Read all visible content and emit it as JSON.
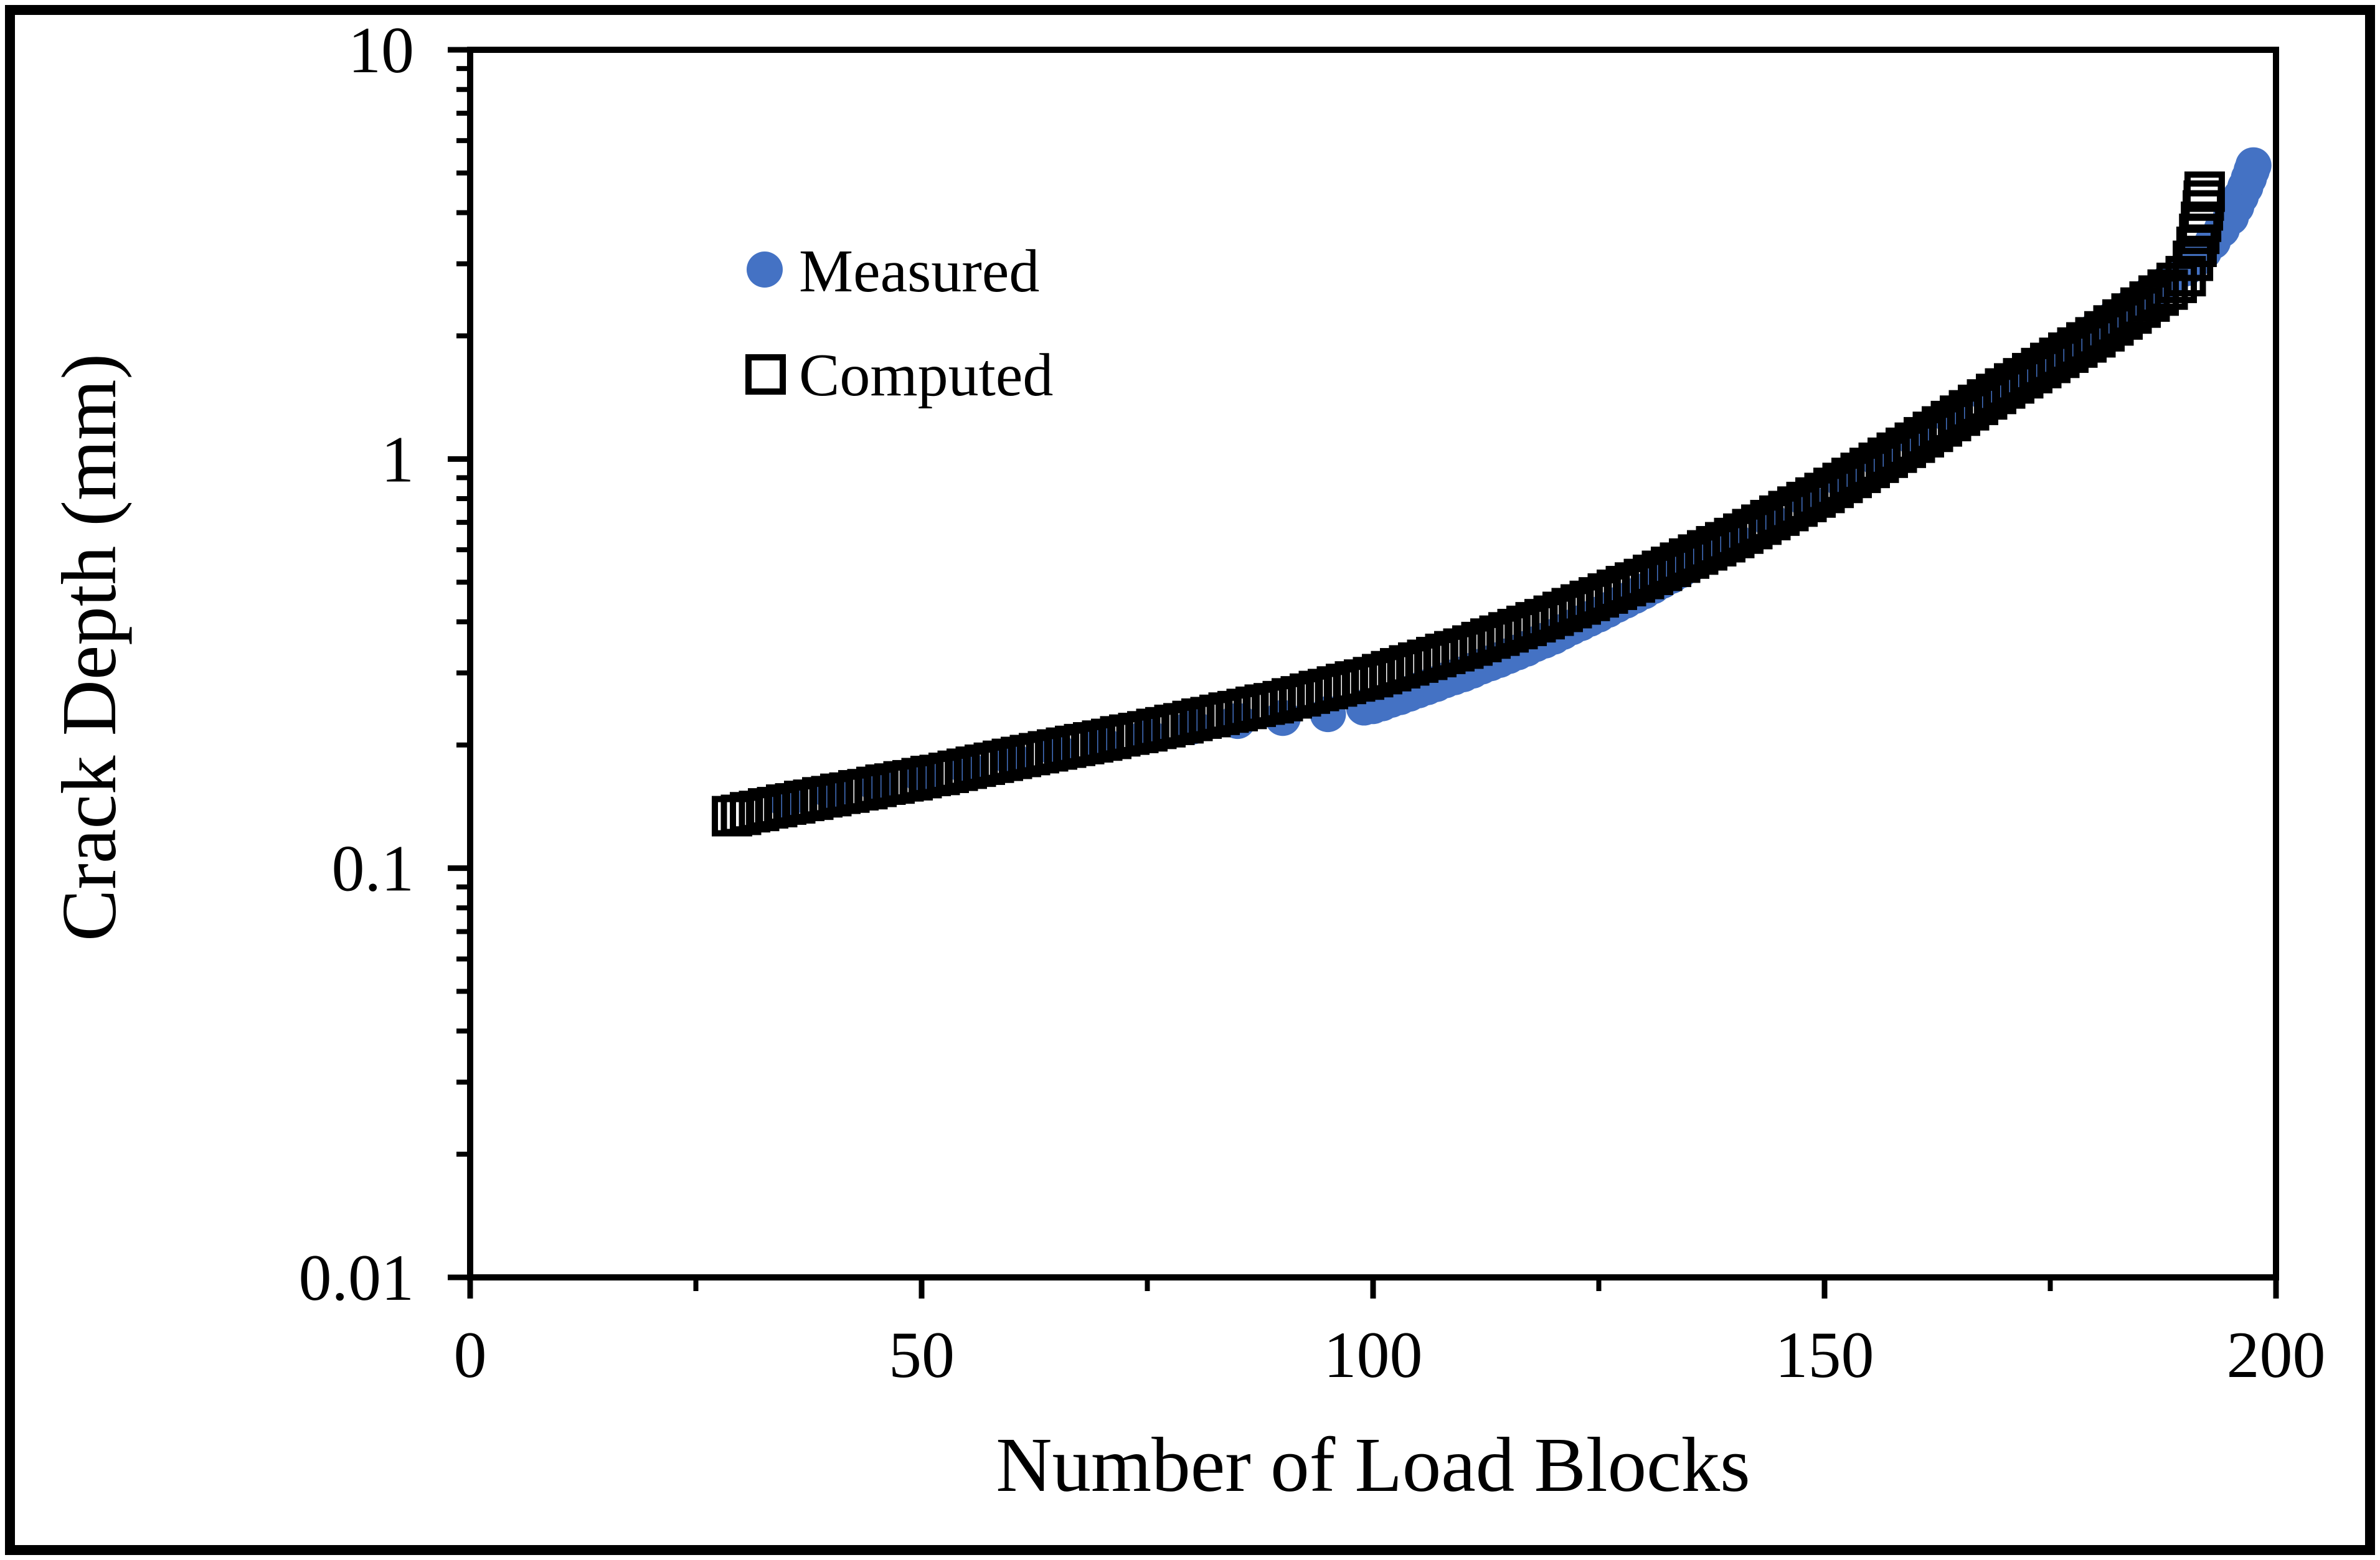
{
  "colors": {
    "measured_blue": "#4472C4",
    "computed_black": "#000000",
    "background": "#FFFFFF",
    "axis": "#000000"
  },
  "chart_data": {
    "type": "scatter",
    "title": "",
    "xlabel": "Number of Load Blocks",
    "ylabel": "Crack Depth (mm)",
    "grid": "off",
    "legend_position": "inside-top-left",
    "x_axis": {
      "scale": "linear",
      "min": 0,
      "max": 200,
      "major_ticks": [
        0,
        50,
        100,
        150,
        200
      ],
      "major_tick_labels": [
        "0",
        "50",
        "100",
        "150",
        "200"
      ],
      "minor_ticks": [
        25,
        75,
        125,
        175
      ]
    },
    "y_axis": {
      "scale": "log",
      "min": 0.01,
      "max": 10,
      "major_ticks": [
        {
          "value": 10,
          "label": "10"
        },
        {
          "value": 1,
          "label": "1"
        },
        {
          "value": 0.1,
          "label": "0.1"
        },
        {
          "value": 0.01,
          "label": "0.01"
        }
      ],
      "minor_mantissas": [
        2,
        3,
        4,
        5,
        6,
        7,
        8,
        9
      ]
    },
    "legend": [
      {
        "label": "Measured",
        "marker": "filled-circle",
        "color": "#4472C4"
      },
      {
        "label": "Computed",
        "marker": "open-square",
        "color": "#000000"
      }
    ],
    "series": [
      {
        "name": "Measured",
        "marker": "circle",
        "color": "#4472C4",
        "points": [
          [
            35,
            0.146
          ],
          [
            40,
            0.153
          ],
          [
            45,
            0.16
          ],
          [
            50,
            0.168
          ],
          [
            55,
            0.176
          ],
          [
            60,
            0.185
          ],
          [
            65,
            0.194
          ],
          [
            70,
            0.202
          ],
          [
            75,
            0.211
          ],
          [
            80,
            0.222
          ],
          [
            85,
            0.229
          ],
          [
            90,
            0.233
          ],
          [
            95,
            0.238
          ],
          [
            99,
            0.247
          ],
          [
            100,
            0.249
          ],
          [
            101,
            0.253
          ],
          [
            102,
            0.258
          ],
          [
            103,
            0.262
          ],
          [
            104,
            0.267
          ],
          [
            105,
            0.272
          ],
          [
            106,
            0.277
          ],
          [
            107,
            0.282
          ],
          [
            108,
            0.288
          ],
          [
            109,
            0.293
          ],
          [
            110,
            0.298
          ],
          [
            111,
            0.304
          ],
          [
            112,
            0.311
          ],
          [
            113,
            0.317
          ],
          [
            114,
            0.323
          ],
          [
            115,
            0.33
          ],
          [
            116,
            0.337
          ],
          [
            117,
            0.344
          ],
          [
            118,
            0.353
          ],
          [
            119,
            0.36
          ],
          [
            120,
            0.368
          ],
          [
            121,
            0.378
          ],
          [
            122,
            0.388
          ],
          [
            123,
            0.397
          ],
          [
            124,
            0.407
          ],
          [
            125,
            0.417
          ],
          [
            126,
            0.428
          ],
          [
            127,
            0.44
          ],
          [
            128,
            0.451
          ],
          [
            129,
            0.463
          ],
          [
            130,
            0.475
          ],
          [
            131,
            0.489
          ],
          [
            132,
            0.504
          ],
          [
            133,
            0.518
          ],
          [
            134,
            0.534
          ],
          [
            135,
            0.55
          ],
          [
            136,
            0.566
          ],
          [
            137,
            0.583
          ],
          [
            140,
            0.635
          ],
          [
            144,
            0.709
          ],
          [
            148,
            0.793
          ],
          [
            152,
            0.885
          ],
          [
            156,
            0.995
          ],
          [
            160,
            1.118
          ],
          [
            164,
            1.269
          ],
          [
            168,
            1.437
          ],
          [
            171,
            1.579
          ],
          [
            174,
            1.728
          ],
          [
            177,
            1.888
          ],
          [
            180,
            2.062
          ],
          [
            182,
            2.205
          ],
          [
            184,
            2.358
          ],
          [
            186,
            2.522
          ],
          [
            188,
            2.698
          ],
          [
            190,
            2.924
          ],
          [
            191,
            3.06
          ],
          [
            192,
            3.21
          ],
          [
            193,
            3.4
          ],
          [
            194,
            3.64
          ],
          [
            195,
            3.9
          ],
          [
            195.6,
            4.14
          ],
          [
            196.1,
            4.38
          ],
          [
            196.6,
            4.62
          ],
          [
            197,
            4.86
          ],
          [
            197.3,
            5.07
          ],
          [
            197.5,
            5.22
          ]
        ]
      },
      {
        "name": "Computed",
        "marker": "square",
        "color": "#000000",
        "x_start": 29,
        "x_step": 1,
        "y_values": [
          0.134,
          0.135,
          0.137,
          0.138,
          0.14,
          0.141,
          0.143,
          0.144,
          0.146,
          0.147,
          0.149,
          0.15,
          0.152,
          0.153,
          0.155,
          0.156,
          0.158,
          0.16,
          0.161,
          0.163,
          0.164,
          0.166,
          0.168,
          0.169,
          0.171,
          0.173,
          0.175,
          0.177,
          0.179,
          0.181,
          0.183,
          0.185,
          0.187,
          0.189,
          0.191,
          0.193,
          0.195,
          0.197,
          0.199,
          0.201,
          0.203,
          0.205,
          0.207,
          0.21,
          0.212,
          0.214,
          0.216,
          0.219,
          0.221,
          0.224,
          0.226,
          0.229,
          0.232,
          0.234,
          0.237,
          0.24,
          0.242,
          0.245,
          0.248,
          0.251,
          0.253,
          0.256,
          0.26,
          0.263,
          0.267,
          0.271,
          0.274,
          0.278,
          0.282,
          0.286,
          0.289,
          0.293,
          0.298,
          0.303,
          0.308,
          0.313,
          0.318,
          0.323,
          0.328,
          0.334,
          0.339,
          0.344,
          0.35,
          0.357,
          0.364,
          0.37,
          0.377,
          0.384,
          0.391,
          0.399,
          0.406,
          0.414,
          0.423,
          0.432,
          0.441,
          0.45,
          0.459,
          0.469,
          0.479,
          0.489,
          0.499,
          0.509,
          0.521,
          0.533,
          0.545,
          0.558,
          0.571,
          0.584,
          0.598,
          0.612,
          0.626,
          0.641,
          0.657,
          0.674,
          0.691,
          0.709,
          0.727,
          0.746,
          0.765,
          0.785,
          0.805,
          0.826,
          0.85,
          0.874,
          0.899,
          0.925,
          0.951,
          0.979,
          1.007,
          1.036,
          1.065,
          1.096,
          1.13,
          1.165,
          1.201,
          1.238,
          1.276,
          1.315,
          1.356,
          1.398,
          1.442,
          1.487,
          1.53,
          1.575,
          1.621,
          1.668,
          1.717,
          1.767,
          1.819,
          1.872,
          1.927,
          1.983,
          2.051,
          2.12,
          2.192,
          2.267,
          2.344,
          2.425,
          2.508,
          2.594,
          2.694,
          2.798
        ],
        "extra_points": [
          [
            190.8,
            3.05
          ],
          [
            191.2,
            3.3
          ],
          [
            191.5,
            3.55
          ],
          [
            191.7,
            3.8
          ],
          [
            191.9,
            4.05
          ],
          [
            192.0,
            4.28
          ],
          [
            192.1,
            4.5
          ]
        ]
      }
    ]
  }
}
